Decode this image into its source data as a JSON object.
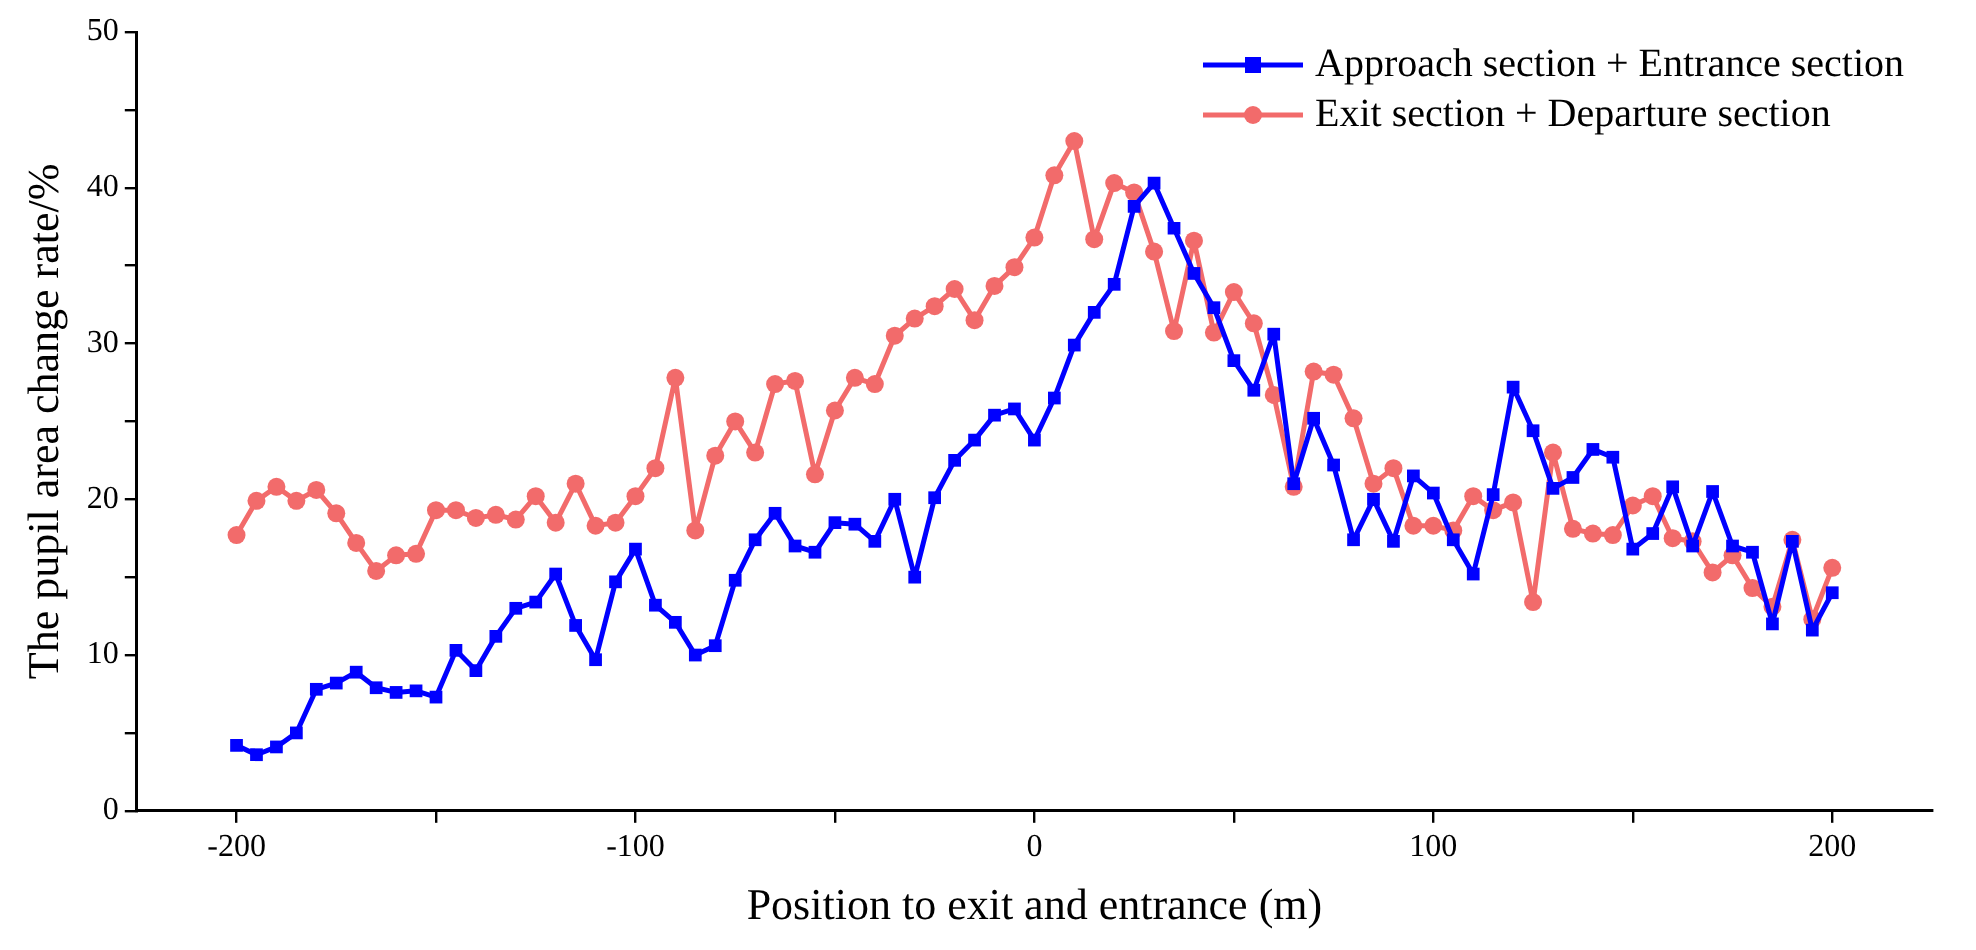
{
  "chart_data": {
    "type": "line",
    "xlabel": "Position to exit and entrance (m)",
    "ylabel": "The pupil area change rate/%",
    "x": [
      -200,
      -195,
      -190,
      -185,
      -180,
      -175,
      -170,
      -165,
      -160,
      -155,
      -150,
      -145,
      -140,
      -135,
      -130,
      -125,
      -120,
      -115,
      -110,
      -105,
      -100,
      -95,
      -90,
      -85,
      -80,
      -75,
      -70,
      -65,
      -60,
      -55,
      -50,
      -45,
      -40,
      -35,
      -30,
      -25,
      -20,
      -15,
      -10,
      -5,
      0,
      5,
      10,
      15,
      20,
      25,
      30,
      35,
      40,
      45,
      50,
      55,
      60,
      65,
      70,
      75,
      80,
      85,
      90,
      95,
      100,
      105,
      110,
      115,
      120,
      125,
      130,
      135,
      140,
      145,
      150,
      155,
      160,
      165,
      170,
      175,
      180,
      185,
      190,
      195,
      200
    ],
    "series": [
      {
        "name": "Approach section + Entrance section",
        "color": "#0000ff",
        "marker": "square",
        "values": [
          4.2,
          3.6,
          4.1,
          5.0,
          7.8,
          8.2,
          8.9,
          7.9,
          7.6,
          7.7,
          7.3,
          10.3,
          9.0,
          11.2,
          13.0,
          13.4,
          15.2,
          11.9,
          9.7,
          14.7,
          16.8,
          13.2,
          12.1,
          10.0,
          10.6,
          14.8,
          17.4,
          19.1,
          17.0,
          16.6,
          18.5,
          18.4,
          17.3,
          20.0,
          15.0,
          20.1,
          22.5,
          23.8,
          25.4,
          25.8,
          23.8,
          26.5,
          29.9,
          32.0,
          33.8,
          38.8,
          40.3,
          37.4,
          34.5,
          32.3,
          28.9,
          27.0,
          30.6,
          21.0,
          25.2,
          22.2,
          17.4,
          20.0,
          17.3,
          21.5,
          20.4,
          17.4,
          15.2,
          20.3,
          27.2,
          24.4,
          20.7,
          21.4,
          23.2,
          22.7,
          16.8,
          17.8,
          20.8,
          17.0,
          20.5,
          17.0,
          16.6,
          12.0,
          17.3,
          11.6,
          14.0
        ]
      },
      {
        "name": "Exit section + Departure section",
        "color": "#f26b6b",
        "marker": "circle",
        "values": [
          17.7,
          19.9,
          20.8,
          19.9,
          20.6,
          19.1,
          17.2,
          15.4,
          16.4,
          16.5,
          19.3,
          19.3,
          18.8,
          19.0,
          18.7,
          20.2,
          18.5,
          21.0,
          18.3,
          18.5,
          20.2,
          22.0,
          27.8,
          18.0,
          22.8,
          25.0,
          23.0,
          27.4,
          27.6,
          21.6,
          25.7,
          27.8,
          27.4,
          30.5,
          31.6,
          32.4,
          33.5,
          31.5,
          33.7,
          34.9,
          36.8,
          40.8,
          43.0,
          36.7,
          40.3,
          39.7,
          35.9,
          30.8,
          36.6,
          30.7,
          33.3,
          31.3,
          26.7,
          20.8,
          28.2,
          28.0,
          25.2,
          21.0,
          22.0,
          18.3,
          18.3,
          18.0,
          20.2,
          19.3,
          19.8,
          13.4,
          23.0,
          18.1,
          17.8,
          17.7,
          19.6,
          20.2,
          17.5,
          17.3,
          15.3,
          16.4,
          14.3,
          13.1,
          17.4,
          12.3,
          15.6
        ]
      }
    ],
    "xlim": [
      -225,
      225
    ],
    "xticks": [
      -200,
      {
        "value": -150,
        "label": null
      },
      -100,
      {
        "value": -50,
        "label": null
      },
      0,
      {
        "value": 50,
        "label": null
      },
      100,
      {
        "value": 150,
        "label": null
      },
      200
    ],
    "ylim": [
      0,
      50
    ],
    "yticks": [
      0,
      {
        "value": 5,
        "label": null
      },
      10,
      {
        "value": 15,
        "label": null
      },
      20,
      {
        "value": 25,
        "label": null
      },
      30,
      {
        "value": 35,
        "label": null
      },
      40,
      {
        "value": 45,
        "label": null
      },
      50
    ],
    "grid": false,
    "legend": "top right",
    "line_style": "solid"
  }
}
